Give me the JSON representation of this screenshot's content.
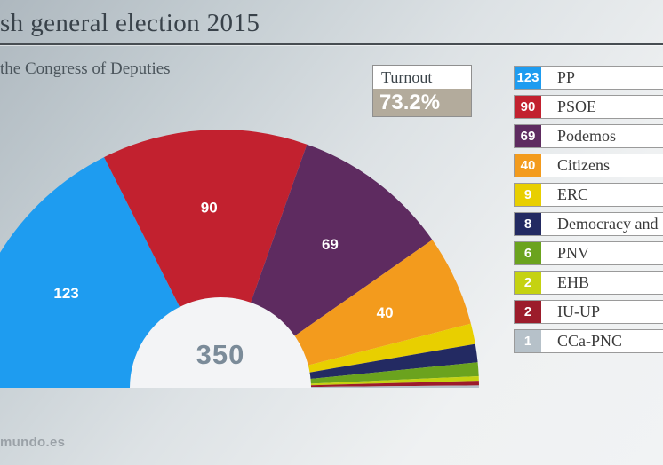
{
  "page": {
    "watermark": "mundo.es"
  },
  "chart_data": {
    "type": "hemicycle",
    "title": "sh general election 2015",
    "subtitle": "the Congress of Deputies",
    "total_seats": 350,
    "total_label": "350",
    "turnout": {
      "label": "Turnout",
      "value": "73.2%"
    },
    "legend_position": "right",
    "parties": [
      {
        "name": "PP",
        "seats": 123,
        "color": "#1e9cf0",
        "show_value_on_chart": true
      },
      {
        "name": "PSOE",
        "seats": 90,
        "color": "#c2212f",
        "show_value_on_chart": true
      },
      {
        "name": "Podemos",
        "seats": 69,
        "color": "#5e2b60",
        "show_value_on_chart": true
      },
      {
        "name": "Citizens",
        "seats": 40,
        "color": "#f39b1d",
        "show_value_on_chart": true
      },
      {
        "name": "ERC",
        "seats": 9,
        "color": "#e8cf00",
        "show_value_on_chart": false
      },
      {
        "name": "Democracy and",
        "seats": 8,
        "color": "#232a62",
        "show_value_on_chart": false
      },
      {
        "name": "PNV",
        "seats": 6,
        "color": "#6ba31e",
        "show_value_on_chart": false
      },
      {
        "name": "EHB",
        "seats": 2,
        "color": "#c5d211",
        "show_value_on_chart": false
      },
      {
        "name": "IU-UP",
        "seats": 2,
        "color": "#9c1c2b",
        "show_value_on_chart": false
      },
      {
        "name": "CCa-PNC",
        "seats": 1,
        "color": "#b6c1c9",
        "show_value_on_chart": false
      }
    ]
  }
}
